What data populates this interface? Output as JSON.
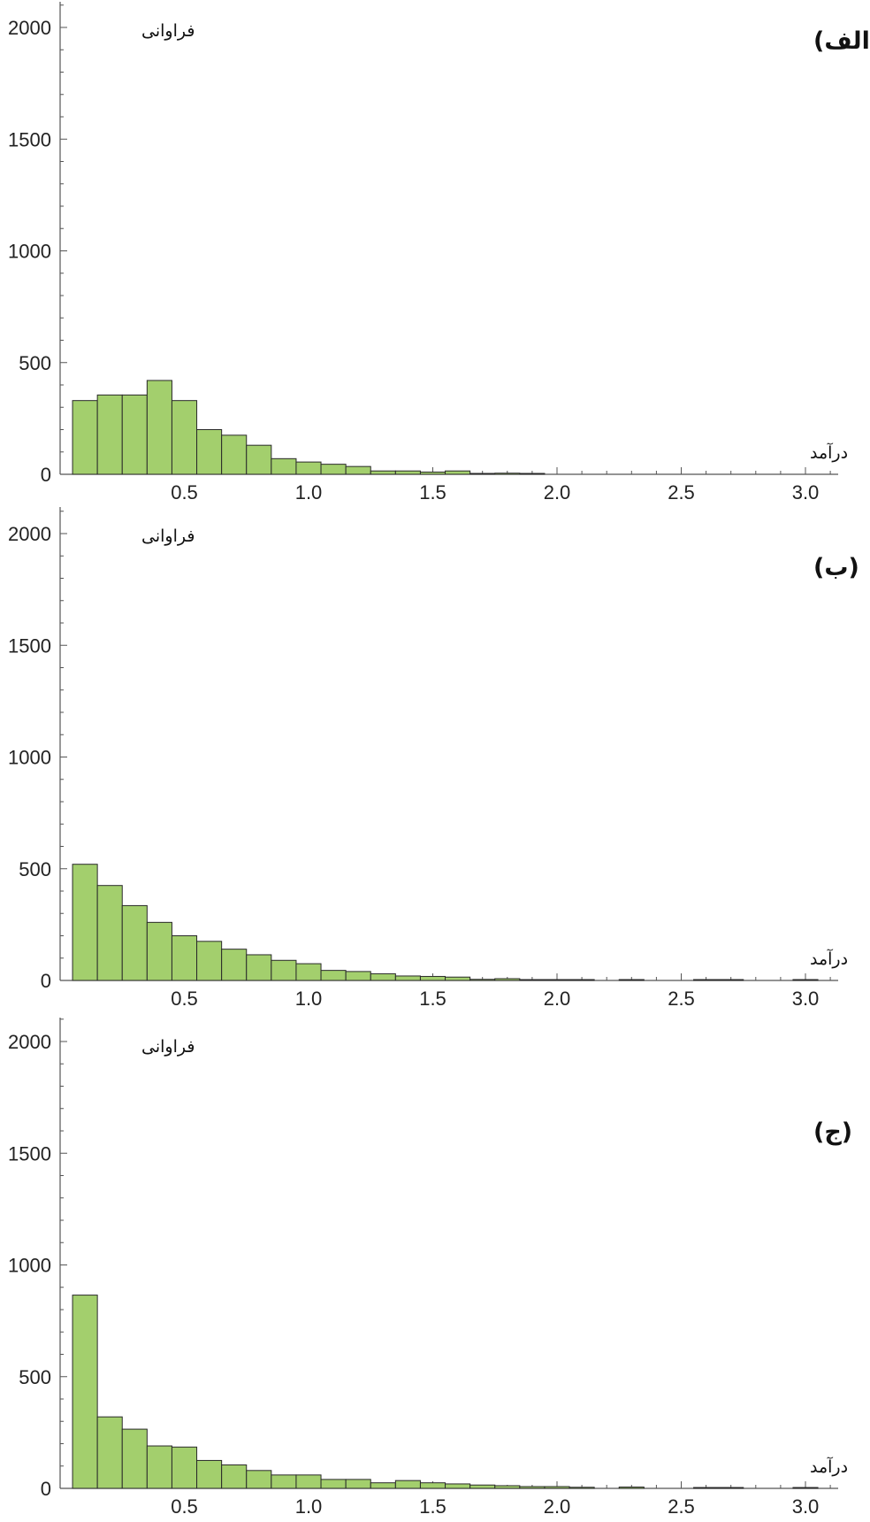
{
  "chart_data": [
    {
      "type": "bar",
      "panel_label": "(الف)",
      "xlabel": "درآمد",
      "ylabel": "فراوانی",
      "ylim": [
        0,
        2100
      ],
      "xlim": [
        0,
        3.1
      ],
      "yticks": [
        0,
        500,
        1000,
        1500,
        2000
      ],
      "xticks": [
        "0.5",
        "1.0",
        "1.5",
        "2.0",
        "2.5",
        "3.0"
      ],
      "bin_width": 0.1,
      "bin_starts": [
        0.05,
        0.15,
        0.25,
        0.35,
        0.45,
        0.55,
        0.65,
        0.75,
        0.85,
        0.95,
        1.05,
        1.15,
        1.25,
        1.35,
        1.45,
        1.55,
        1.65,
        1.75,
        1.85
      ],
      "values": [
        330,
        355,
        355,
        420,
        330,
        200,
        175,
        130,
        70,
        55,
        45,
        35,
        15,
        15,
        10,
        15,
        2,
        5,
        3
      ]
    },
    {
      "type": "bar",
      "panel_label": "(ب)",
      "xlabel": "درآمد",
      "ylabel": "فراوانی",
      "ylim": [
        0,
        2100
      ],
      "xlim": [
        0,
        3.1
      ],
      "yticks": [
        0,
        500,
        1000,
        1500,
        2000
      ],
      "xticks": [
        "0.5",
        "1.0",
        "1.5",
        "2.0",
        "2.5",
        "3.0"
      ],
      "bin_width": 0.1,
      "bin_starts": [
        0.05,
        0.15,
        0.25,
        0.35,
        0.45,
        0.55,
        0.65,
        0.75,
        0.85,
        0.95,
        1.05,
        1.15,
        1.25,
        1.35,
        1.45,
        1.55,
        1.65,
        1.75,
        1.85,
        1.95,
        2.05,
        2.25,
        2.55,
        2.65,
        2.95
      ],
      "values": [
        520,
        425,
        335,
        260,
        200,
        175,
        140,
        115,
        90,
        75,
        45,
        40,
        30,
        20,
        18,
        15,
        5,
        8,
        3,
        3,
        3,
        2,
        2,
        2,
        3
      ]
    },
    {
      "type": "bar",
      "panel_label": "(ج)",
      "xlabel": "درآمد",
      "ylabel": "فراوانی",
      "ylim": [
        0,
        2100
      ],
      "xlim": [
        0,
        3.1
      ],
      "yticks": [
        0,
        500,
        1000,
        1500,
        2000
      ],
      "xticks": [
        "0.5",
        "1.0",
        "1.5",
        "2.0",
        "2.5",
        "3.0"
      ],
      "bin_width": 0.1,
      "bin_starts": [
        0.05,
        0.15,
        0.25,
        0.35,
        0.45,
        0.55,
        0.65,
        0.75,
        0.85,
        0.95,
        1.05,
        1.15,
        1.25,
        1.35,
        1.45,
        1.55,
        1.65,
        1.75,
        1.85,
        1.95,
        2.05,
        2.25,
        2.55,
        2.65,
        2.95
      ],
      "values": [
        865,
        320,
        265,
        190,
        185,
        125,
        105,
        80,
        60,
        60,
        40,
        40,
        25,
        35,
        25,
        20,
        15,
        12,
        8,
        8,
        5,
        6,
        3,
        3,
        2
      ]
    }
  ],
  "style": {
    "bar_fill": "#a3cf6d",
    "bar_stroke": "#2a2a2a",
    "axis_color": "#555555"
  }
}
